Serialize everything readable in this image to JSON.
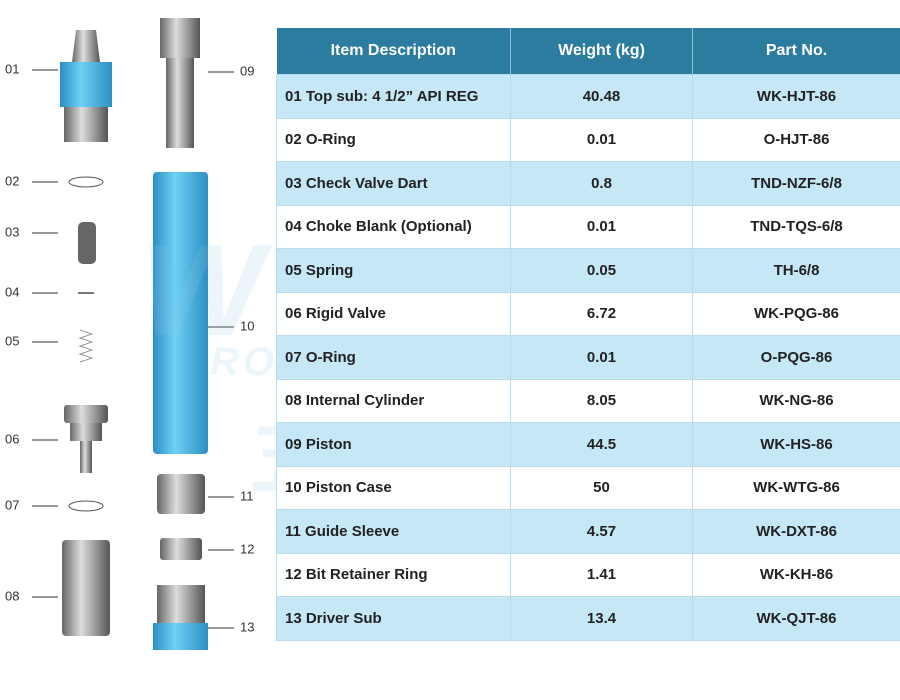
{
  "watermark": {
    "brand": "WOOKO",
    "tagline": "ROCK DRILLING TOOLS",
    "chinese": "五环欧科"
  },
  "parts": [
    {
      "label": "01"
    },
    {
      "label": "02"
    },
    {
      "label": "03"
    },
    {
      "label": "04"
    },
    {
      "label": "05"
    },
    {
      "label": "06"
    },
    {
      "label": "07"
    },
    {
      "label": "08"
    },
    {
      "label": "09"
    },
    {
      "label": "10"
    },
    {
      "label": "11"
    },
    {
      "label": "12"
    },
    {
      "label": "13"
    }
  ],
  "table": {
    "header": [
      "Item Description",
      "Weight (kg)",
      "Part No."
    ],
    "rows": [
      [
        "01 Top sub: 4 1/2” API REG",
        "40.48",
        "WK-HJT-86"
      ],
      [
        "02 O-Ring",
        "0.01",
        "O-HJT-86"
      ],
      [
        "03 Check Valve Dart",
        "0.8",
        "TND-NZF-6/8"
      ],
      [
        "04 Choke Blank (Optional)",
        "0.01",
        "TND-TQS-6/8"
      ],
      [
        "05 Spring",
        "0.05",
        "TH-6/8"
      ],
      [
        "06 Rigid Valve",
        "6.72",
        "WK-PQG-86"
      ],
      [
        "07 O-Ring",
        "0.01",
        "O-PQG-86"
      ],
      [
        "08 Internal Cylinder",
        "8.05",
        "WK-NG-86"
      ],
      [
        "09 Piston",
        "44.5",
        "WK-HS-86"
      ],
      [
        "10 Piston Case",
        "50",
        "WK-WTG-86"
      ],
      [
        "11 Guide Sleeve",
        "4.57",
        "WK-DXT-86"
      ],
      [
        "12 Bit Retainer Ring",
        "1.41",
        "WK-KH-86"
      ],
      [
        "13 Driver Sub",
        "13.4",
        "WK-QJT-86"
      ]
    ]
  }
}
